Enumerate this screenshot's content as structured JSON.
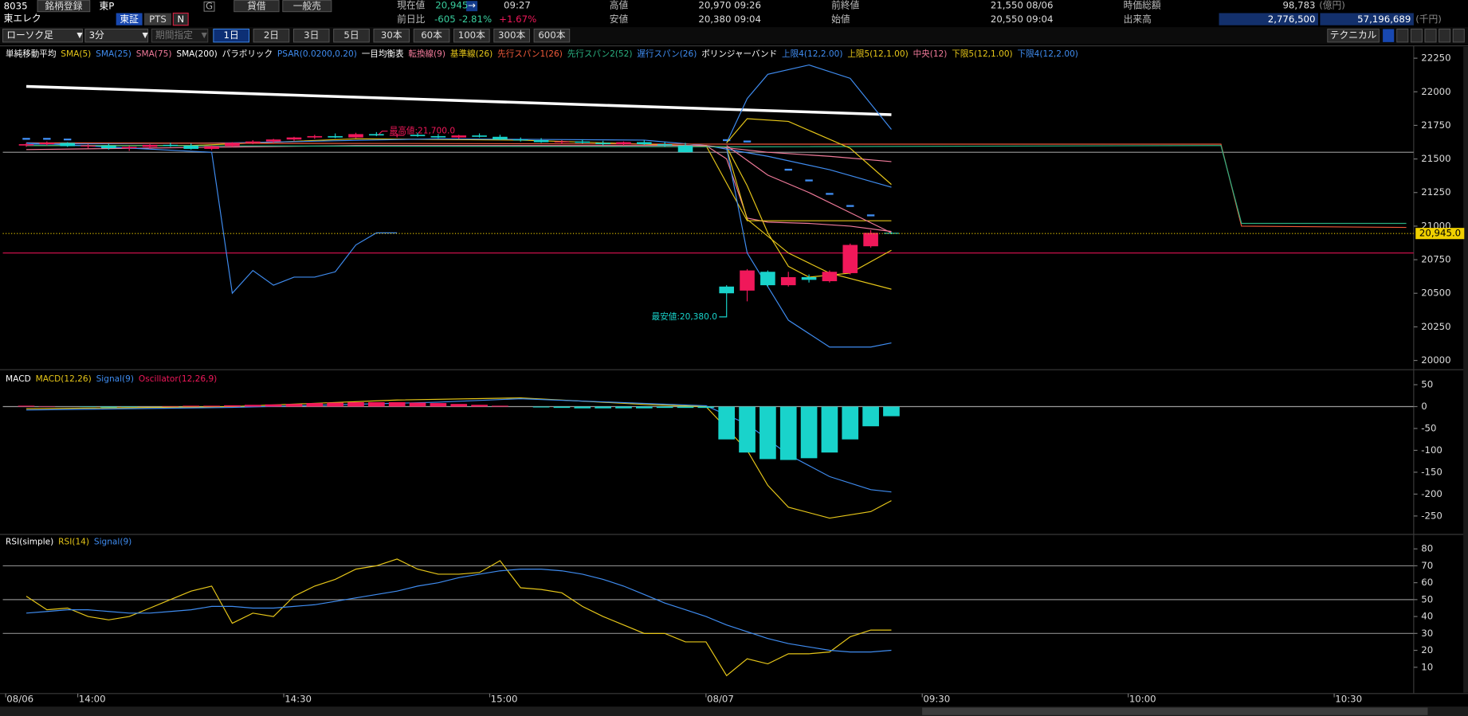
{
  "header": {
    "code": "8035",
    "register": "銘柄登録",
    "market": "東P",
    "name": "東エレク",
    "exchange": "東証",
    "pts": "PTS",
    "news": "N",
    "g": "G",
    "margin": "貸借",
    "general_short": "一般売"
  },
  "quote": {
    "current": {
      "label": "現在値",
      "value": "20,945",
      "arrow": "→",
      "time": "09:27"
    },
    "change": {
      "label": "前日比",
      "value": "-605",
      "percent": "-2.81%",
      "other": "+1.67%"
    },
    "high": {
      "label": "高値",
      "value": "20,970 09:26"
    },
    "low": {
      "label": "安値",
      "value": "20,380 09:04"
    },
    "prev_close": {
      "label": "前終値",
      "value": "21,550 08/06"
    },
    "open": {
      "label": "始値",
      "value": "20,550 09:04"
    },
    "market_cap": {
      "label": "時価総額",
      "value": "98,783",
      "unit": "(億円)"
    },
    "volume": {
      "label": "出来高",
      "shares": "2,776,500",
      "amount": "57,196,689",
      "unit": "(千円)"
    }
  },
  "toolbar": {
    "chart_type": "ローソク足",
    "interval": "3分",
    "period": "期間指定",
    "ranges": [
      "1日",
      "2日",
      "3日",
      "5日",
      "30本",
      "60本",
      "100本",
      "300本",
      "600本"
    ],
    "active_range": 0,
    "technical": "テクニカル"
  },
  "chart_data": [
    {
      "type": "candlestick",
      "up_color": "#f0185a",
      "down_color": "#19d3cb",
      "x": [
        0,
        1,
        2,
        3,
        4,
        5,
        6,
        7,
        8,
        9,
        10,
        11,
        12,
        13,
        14,
        15,
        16,
        17,
        18,
        19,
        20,
        21,
        22,
        23,
        24,
        25,
        26,
        27,
        28,
        29,
        30,
        31,
        32,
        34,
        35,
        36,
        37,
        38,
        39,
        40,
        41,
        42
      ],
      "open": [
        21600,
        21610,
        21620,
        21595,
        21600,
        21580,
        21590,
        21605,
        21600,
        21575,
        21595,
        21620,
        21630,
        21645,
        21660,
        21670,
        21660,
        21685,
        21675,
        21680,
        21670,
        21660,
        21675,
        21665,
        21645,
        21640,
        21625,
        21630,
        21620,
        21610,
        21625,
        21610,
        21600,
        20550,
        20520,
        20660,
        20560,
        20620,
        20590,
        20650,
        20850,
        20950
      ],
      "high": [
        21620,
        21630,
        21625,
        21610,
        21615,
        21600,
        21610,
        21620,
        21615,
        21600,
        21625,
        21640,
        21650,
        21665,
        21680,
        21690,
        21695,
        21700,
        21690,
        21695,
        21685,
        21680,
        21690,
        21680,
        21660,
        21655,
        21640,
        21645,
        21635,
        21630,
        21640,
        21625,
        21620,
        20560,
        20680,
        20670,
        20660,
        20640,
        20670,
        20870,
        20970,
        20955
      ],
      "low": [
        21590,
        21600,
        21590,
        21580,
        21570,
        21560,
        21575,
        21590,
        21570,
        21565,
        21590,
        21610,
        21620,
        21635,
        21650,
        21655,
        21655,
        21670,
        21660,
        21665,
        21655,
        21650,
        21660,
        21640,
        21630,
        21620,
        21610,
        21615,
        21600,
        21600,
        21605,
        21590,
        21550,
        20380,
        20440,
        20550,
        20550,
        20580,
        20580,
        20640,
        20840,
        20940
      ],
      "close": [
        21610,
        21620,
        21595,
        21600,
        21580,
        21590,
        21605,
        21600,
        21575,
        21595,
        21620,
        21630,
        21645,
        21660,
        21670,
        21660,
        21685,
        21675,
        21680,
        21670,
        21660,
        21675,
        21665,
        21645,
        21640,
        21625,
        21630,
        21620,
        21610,
        21625,
        21610,
        21600,
        21550,
        20500,
        20670,
        20560,
        20620,
        20600,
        20660,
        20860,
        20950,
        20945
      ],
      "indicators": [
        {
          "name": "単純移動平均",
          "series": [
            {
              "name": "SMA(5)",
              "color": "#e6c619",
              "x": [
                0,
                8,
                16,
                24,
                32,
                34,
                35,
                36,
                37,
                38,
                40,
                42
              ],
              "values": [
                21600,
                21600,
                21650,
                21640,
                21600,
                21590,
                21300,
                20950,
                20700,
                20620,
                20650,
                20820
              ]
            },
            {
              "name": "SMA(25)",
              "color": "#3f8cf0",
              "x": [
                0,
                10,
                20,
                30,
                33,
                36,
                39,
                42
              ],
              "values": [
                21610,
                21620,
                21650,
                21640,
                21600,
                21520,
                21420,
                21290
              ]
            },
            {
              "name": "SMA(75)",
              "color": "#f07a9a",
              "x": [
                0,
                16,
                33,
                36,
                39,
                42
              ],
              "values": [
                21570,
                21600,
                21600,
                21550,
                21520,
                21480
              ]
            },
            {
              "name": "SMA(200)",
              "color": "#ffffff",
              "width": 3,
              "x": [
                0,
                42
              ],
              "values": [
                22040,
                21830
              ]
            }
          ]
        },
        {
          "name": "パラボリック",
          "series": [
            {
              "name": "PSAR(0.0200,0.20)",
              "color": "#3f8cf0",
              "style": "dots",
              "x": [
                0,
                1,
                2,
                34,
                35,
                37,
                38,
                39,
                40,
                41
              ],
              "values": [
                21650,
                21650,
                21645,
                21640,
                21630,
                21420,
                21340,
                21240,
                21150,
                21080
              ]
            }
          ]
        },
        {
          "name": "一目均衡表",
          "series": [
            {
              "name": "転換線(9)",
              "color": "#f07a9a",
              "x": [
                33,
                34,
                35,
                36,
                38,
                40,
                42
              ],
              "values": [
                21600,
                21500,
                21060,
                21030,
                21020,
                21000,
                20960
              ]
            },
            {
              "name": "基準線(26)",
              "color": "#e6c619",
              "x": [
                33,
                35,
                42
              ],
              "values": [
                21600,
                21040,
                21040
              ]
            },
            {
              "name": "先行スパン1(26)",
              "color": "#f05a3a",
              "x": [
                0,
                34,
                58,
                59,
                67
              ],
              "values": [
                21620,
                21610,
                21610,
                21000,
                20990
              ]
            },
            {
              "name": "先行スパン2(52)",
              "color": "#2ab080",
              "x": [
                0,
                34,
                58,
                59,
                67
              ],
              "values": [
                21600,
                21590,
                21600,
                21020,
                21020
              ]
            },
            {
              "name": "遅行スパン(26)",
              "color": "#3f8cf0",
              "x": [
                0,
                9,
                10,
                11,
                12,
                13,
                14,
                15,
                16,
                17,
                18
              ],
              "values": [
                21620,
                21550,
                20500,
                20670,
                20560,
                20620,
                20620,
                20660,
                20860,
                20950,
                20950
              ]
            }
          ]
        },
        {
          "name": "ボリンジャーバンド",
          "series": [
            {
              "name": "上限4(12,2.00)",
              "color": "#3f8cf0",
              "x": [
                34,
                35,
                36,
                38,
                40,
                42
              ],
              "values": [
                21620,
                21950,
                22130,
                22200,
                22100,
                21720
              ]
            },
            {
              "name": "上限5(12,1.00)",
              "color": "#e6c619",
              "x": [
                34,
                35,
                37,
                40,
                42
              ],
              "values": [
                21620,
                21800,
                21780,
                21580,
                21310
              ]
            },
            {
              "name": "中央(12)",
              "color": "#f07a9a",
              "x": [
                34,
                36,
                38,
                40,
                42
              ],
              "values": [
                21600,
                21380,
                21250,
                21100,
                20950
              ]
            },
            {
              "name": "下限5(12,1.00)",
              "color": "#e6c619",
              "x": [
                34,
                35,
                37,
                39,
                42
              ],
              "values": [
                21580,
                21050,
                20800,
                20650,
                20530
              ]
            },
            {
              "name": "下限4(12,2.00)",
              "color": "#3f8cf0",
              "x": [
                34,
                35,
                37,
                39,
                41,
                42
              ],
              "values": [
                21580,
                20800,
                20300,
                20100,
                20100,
                20130
              ]
            }
          ]
        }
      ],
      "hlines": [
        {
          "value": 21550,
          "color": "#9a9a9a"
        },
        {
          "value": 20800,
          "color": "#c8104a"
        }
      ],
      "current": {
        "value": 20945,
        "label": "20,945.0",
        "color": "#f0d000"
      },
      "annotations": [
        {
          "text": "最高値:21,700.0",
          "x": 17,
          "value": 21700,
          "color": "#f0185a"
        },
        {
          "text": "最安値:20,380.0",
          "x": 34,
          "value": 20380,
          "color": "#19d3cb"
        }
      ],
      "xlim": [
        -0.64,
        67.86
      ],
      "ylim": [
        19945,
        22335
      ],
      "yticks": [
        20000,
        20250,
        20500,
        20750,
        21000,
        21250,
        21500,
        21750,
        22000,
        22250
      ]
    },
    {
      "type": "macd",
      "title": "MACD",
      "series": [
        {
          "name": "MACD(12,26)",
          "color": "#e6c619",
          "x": [
            0,
            10,
            18,
            24,
            30,
            33,
            35,
            36,
            37,
            39,
            41,
            42
          ],
          "values": [
            -5,
            0,
            15,
            20,
            5,
            0,
            -100,
            -180,
            -230,
            -255,
            -240,
            -215
          ]
        },
        {
          "name": "Signal(9)",
          "color": "#3f8cf0",
          "x": [
            0,
            10,
            20,
            24,
            33,
            35,
            37,
            39,
            41,
            42
          ],
          "values": [
            -8,
            -2,
            10,
            18,
            2,
            -40,
            -110,
            -160,
            -190,
            -195
          ]
        },
        {
          "name": "Oscillator(12,26,9)",
          "color": "#f0185a",
          "negative_color": "#19d3cb",
          "style": "bar",
          "x": [
            0,
            1,
            2,
            3,
            4,
            5,
            6,
            7,
            8,
            9,
            10,
            11,
            12,
            13,
            14,
            15,
            16,
            17,
            18,
            19,
            20,
            21,
            22,
            23,
            24,
            25,
            26,
            27,
            28,
            29,
            30,
            31,
            32,
            33,
            34,
            35,
            36,
            37,
            38,
            39,
            40,
            41,
            42
          ],
          "values": [
            2,
            1,
            0,
            -1,
            -2,
            -1,
            0,
            1,
            2,
            2,
            3,
            4,
            5,
            6,
            8,
            9,
            10,
            10,
            10,
            9,
            8,
            6,
            4,
            2,
            0,
            -2,
            -3,
            -4,
            -4,
            -4,
            -4,
            -3,
            -3,
            -3,
            -75,
            -105,
            -120,
            -122,
            -118,
            -105,
            -75,
            -45,
            -22
          ]
        }
      ],
      "hlines": [
        {
          "value": 0,
          "color": "#9a9a9a"
        }
      ],
      "xlim": [
        -0.64,
        67.86
      ],
      "ylim": [
        -290,
        80
      ],
      "yticks": [
        50,
        0,
        -50,
        -100,
        -150,
        -200,
        -250
      ]
    },
    {
      "type": "line",
      "title": "RSI(simple)",
      "series": [
        {
          "name": "RSI(14)",
          "color": "#e6c619",
          "x": [
            0,
            1,
            2,
            3,
            4,
            5,
            6,
            7,
            8,
            9,
            10,
            11,
            12,
            13,
            14,
            15,
            16,
            17,
            18,
            19,
            20,
            21,
            22,
            23,
            24,
            25,
            26,
            27,
            28,
            29,
            30,
            31,
            32,
            33,
            34,
            35,
            36,
            37,
            38,
            39,
            40,
            41,
            42
          ],
          "values": [
            52,
            44,
            45,
            40,
            38,
            40,
            45,
            50,
            55,
            58,
            36,
            42,
            40,
            52,
            58,
            62,
            68,
            70,
            74,
            68,
            65,
            65,
            66,
            73,
            57,
            56,
            54,
            46,
            40,
            35,
            30,
            30,
            25,
            25,
            5,
            15,
            12,
            18,
            18,
            19,
            28,
            32,
            32
          ]
        },
        {
          "name": "Signal(9)",
          "color": "#3f8cf0",
          "x": [
            0,
            1,
            2,
            3,
            4,
            5,
            6,
            7,
            8,
            9,
            10,
            11,
            12,
            13,
            14,
            15,
            16,
            17,
            18,
            19,
            20,
            21,
            22,
            23,
            24,
            25,
            26,
            27,
            28,
            29,
            30,
            31,
            32,
            33,
            34,
            35,
            36,
            37,
            38,
            39,
            40,
            41,
            42
          ],
          "values": [
            42,
            43,
            44,
            44,
            43,
            42,
            42,
            43,
            44,
            46,
            46,
            45,
            45,
            46,
            47,
            49,
            51,
            53,
            55,
            58,
            60,
            63,
            65,
            67,
            68,
            68,
            67,
            65,
            62,
            58,
            53,
            48,
            44,
            40,
            35,
            31,
            27,
            24,
            22,
            20,
            19,
            19,
            20
          ]
        }
      ],
      "hlines": [
        {
          "value": 70,
          "color": "#8a8a8a"
        },
        {
          "value": 50,
          "color": "#8a8a8a"
        },
        {
          "value": 30,
          "color": "#8a8a8a"
        }
      ],
      "xlim": [
        -0.64,
        67.86
      ],
      "ylim": [
        -5,
        88
      ],
      "yticks": [
        80,
        70,
        60,
        50,
        40,
        30,
        20,
        10
      ],
      "xticks": [
        {
          "value": -0.5,
          "label": "08/06"
        },
        {
          "value": 3,
          "label": "14:00"
        },
        {
          "value": 13,
          "label": "14:30"
        },
        {
          "value": 23,
          "label": "15:00"
        },
        {
          "value": 33.5,
          "label": "08/07"
        },
        {
          "value": 44,
          "label": "09:30"
        },
        {
          "value": 54,
          "label": "10:00"
        },
        {
          "value": 64,
          "label": "10:30"
        }
      ]
    }
  ]
}
